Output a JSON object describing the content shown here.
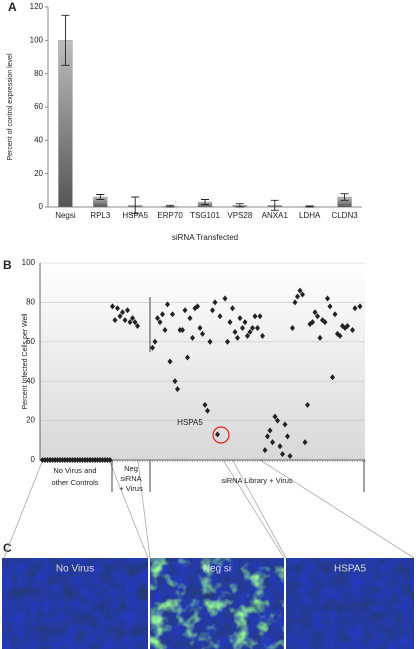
{
  "chart_data": [
    {
      "type": "bar",
      "y_label": "Percent of control expression level",
      "x_label": "siRNA Transfected",
      "categories": [
        "Negsi",
        "RPL3",
        "HSPA5",
        "ERP70",
        "TSG101",
        "VPS28",
        "ANXA1",
        "LDHA",
        "CLDN3"
      ],
      "values": [
        100,
        6,
        1,
        0.5,
        3,
        1,
        1,
        0.3,
        6
      ],
      "errors": [
        15,
        1.5,
        5,
        0.5,
        1.5,
        1,
        3,
        0.3,
        2
      ],
      "color": "#8c8c8c",
      "ylim": [
        0,
        120
      ],
      "yticks": [
        0,
        20,
        40,
        60,
        80,
        100,
        120
      ]
    },
    {
      "type": "scatter",
      "y_label": "Percent Infected Cells per Well",
      "x": [
        1,
        2,
        3,
        4,
        5,
        6,
        7,
        8,
        9,
        10,
        11,
        12,
        13,
        14,
        15,
        16,
        17,
        18,
        19,
        20,
        21,
        22,
        23,
        24,
        25,
        26,
        27,
        28,
        29,
        30,
        31,
        32,
        33,
        34,
        35,
        36,
        37,
        38,
        39,
        45,
        46,
        47,
        48,
        49,
        50,
        51,
        52,
        53,
        54,
        55,
        56,
        57,
        58,
        59,
        60,
        61,
        62,
        63,
        64,
        65,
        66,
        67,
        68,
        69,
        70,
        71,
        72,
        74,
        75,
        76,
        77,
        78,
        79,
        80,
        81,
        82,
        83,
        84,
        85,
        86,
        87,
        88,
        89,
        90,
        91,
        92,
        93,
        94,
        95,
        96,
        97,
        98,
        99,
        100,
        101,
        102,
        103,
        104,
        105,
        106,
        107,
        108,
        109,
        110,
        111,
        112,
        113,
        114,
        115,
        116,
        117,
        118,
        119,
        120,
        121,
        122,
        123,
        125,
        126,
        128
      ],
      "values": [
        0,
        0,
        0,
        0,
        0,
        0,
        0,
        0,
        0,
        0,
        0,
        0,
        0,
        0,
        0,
        0,
        0,
        0,
        0,
        0,
        0,
        0,
        0,
        0,
        0,
        0,
        0,
        0,
        78,
        71,
        77,
        73,
        75,
        71,
        76,
        70,
        72,
        70,
        68,
        57,
        60,
        72,
        70,
        74,
        66,
        79,
        50,
        74,
        40,
        36,
        66,
        66,
        76,
        52,
        72,
        62,
        77,
        78,
        67,
        64,
        28,
        25,
        60,
        76,
        80,
        13,
        73,
        82,
        60,
        70,
        77,
        65,
        62,
        72,
        67,
        70,
        63,
        65,
        67,
        73,
        67,
        73,
        63,
        5,
        12,
        15,
        9,
        22,
        20,
        7,
        3,
        18,
        12,
        2,
        67,
        80,
        83,
        86,
        84,
        9,
        28,
        69,
        70,
        75,
        73,
        62,
        71,
        70,
        82,
        78,
        42,
        74,
        64,
        63,
        68,
        67,
        68,
        66,
        77,
        78
      ],
      "color": "#222222",
      "xlim": [
        0,
        130
      ],
      "ylim": [
        0,
        100
      ],
      "yticks": [
        0,
        20,
        40,
        60,
        80,
        100
      ],
      "grid": true,
      "annotation": "HSPA5",
      "group_labels": [
        [
          "No Virus and",
          "other Controls"
        ],
        [
          "Neg",
          "siRNA",
          "+ Virus"
        ],
        [
          "siRNA Library + Virus"
        ]
      ]
    }
  ],
  "panel_labels": [
    "A",
    "B",
    "C"
  ],
  "images": [
    {
      "label": "No Virus"
    },
    {
      "label": "Neg si"
    },
    {
      "label": "HSPA5"
    }
  ]
}
